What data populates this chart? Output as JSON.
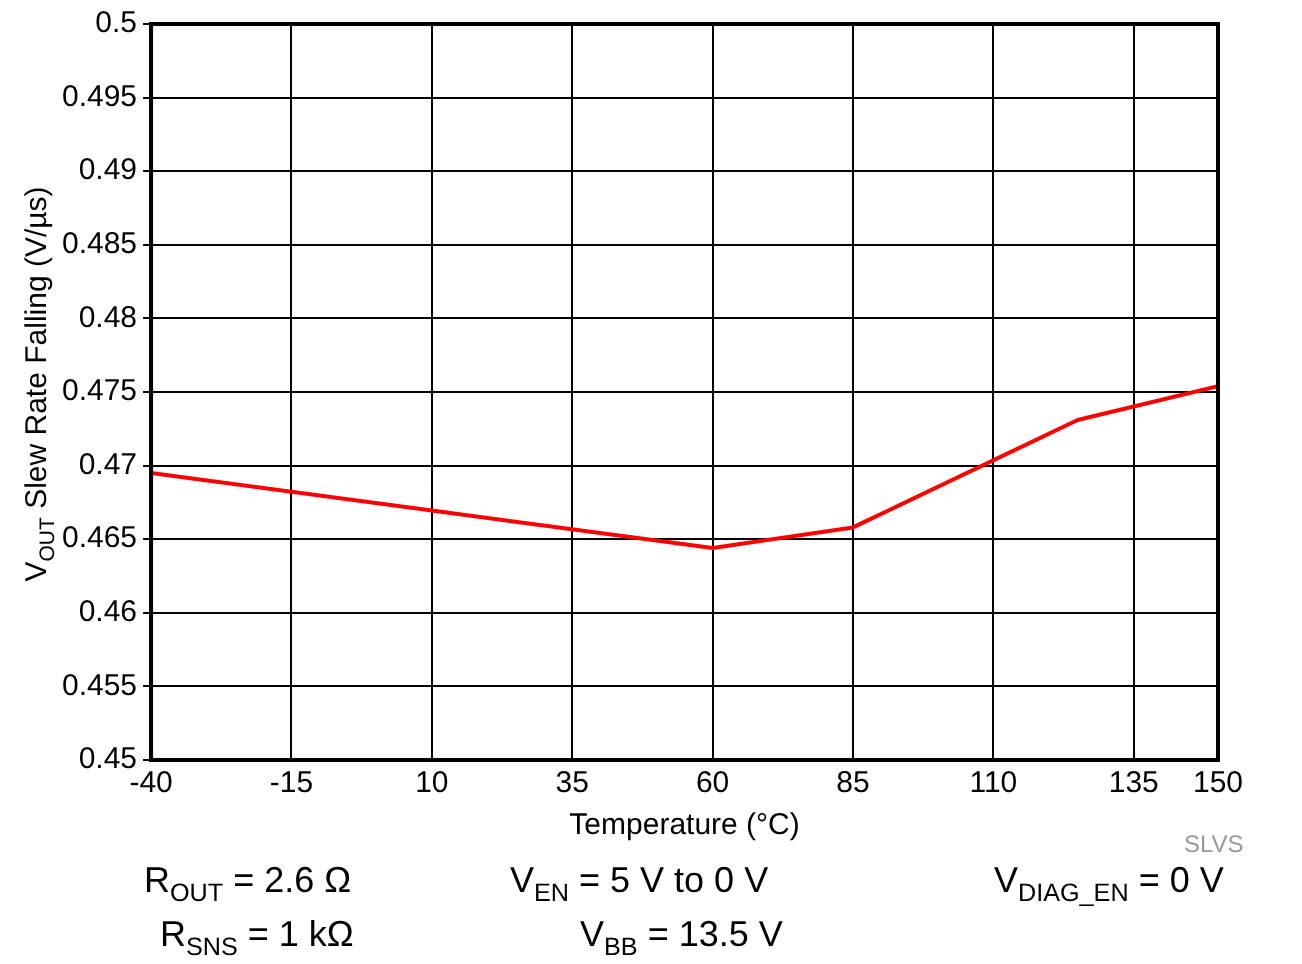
{
  "chart_data": {
    "type": "line",
    "xlabel": "Temperature (°C)",
    "ylabel": "V$_{OUT}$ Slew Rate Falling (V/µs)",
    "x": [
      -40,
      60,
      85,
      125,
      150
    ],
    "series": [
      {
        "color": "#ff0000",
        "values": [
          0.4695,
          0.4644,
          0.4658,
          0.4731,
          0.4754
        ]
      }
    ],
    "xlim": [
      -40,
      150
    ],
    "xticks": [
      -40,
      -15,
      10,
      35,
      60,
      85,
      110,
      135,
      150
    ],
    "ylim": [
      0.45,
      0.5
    ],
    "yticks": [
      0.45,
      0.455,
      0.46,
      0.465,
      0.47,
      0.475,
      0.48,
      0.485,
      0.49,
      0.495,
      0.5
    ],
    "grid": true,
    "legend": false,
    "marker": "none",
    "line_style": "solid",
    "annotations": [
      "SLVS",
      "R$_{OUT}$ = 2.6 Ω",
      "V$_{EN}$ = 5 V to 0 V",
      "V$_{DIAG_EN}$ = 0 V",
      "R$_{SNS}$ = 1 kΩ",
      "V$_{BB}$ = 13.5 V"
    ]
  }
}
